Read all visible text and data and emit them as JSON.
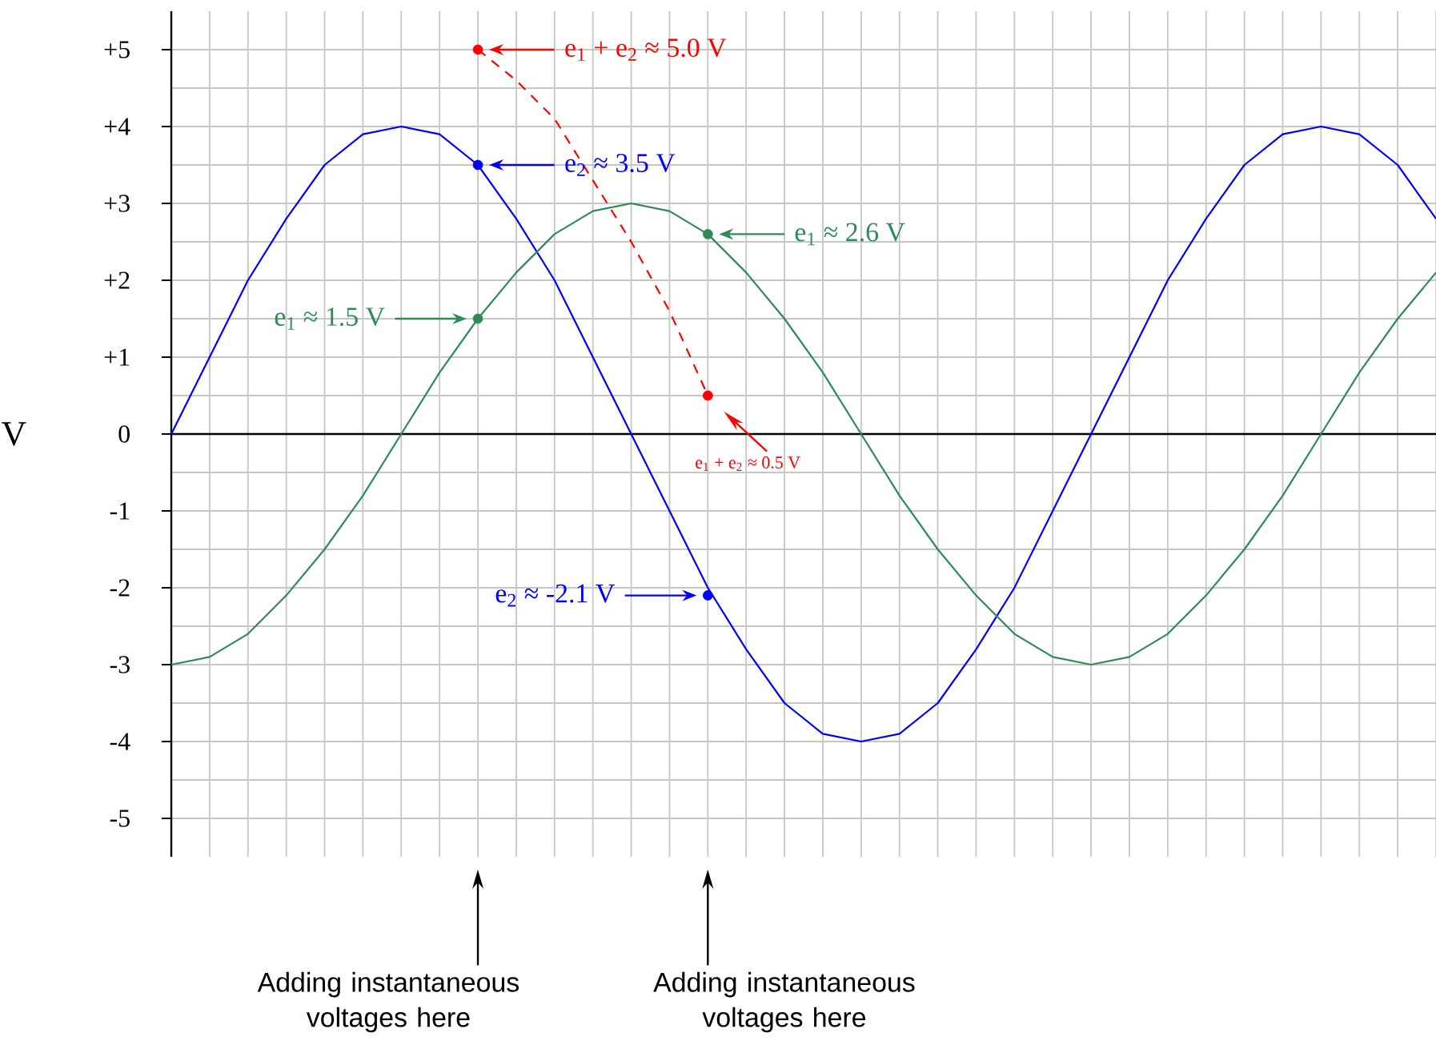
{
  "chart_data": {
    "type": "line",
    "ylabel": "V",
    "ylim": [
      -5.5,
      5.5
    ],
    "categories": [
      null,
      null,
      null,
      null,
      null,
      null,
      null,
      null,
      null,
      null,
      null,
      null,
      null,
      null,
      null,
      null,
      null,
      null,
      null,
      null,
      null,
      null,
      null,
      null,
      null,
      null,
      null,
      null,
      null,
      null,
      null,
      null,
      null,
      null
    ],
    "yticks": [
      {
        "value": 5,
        "label": "+5"
      },
      {
        "value": 4,
        "label": "+4"
      },
      {
        "value": 3,
        "label": "+3"
      },
      {
        "value": 2,
        "label": "+2"
      },
      {
        "value": 1,
        "label": "+1"
      },
      0,
      -1,
      -2,
      -3,
      -4,
      -5
    ],
    "tick_labels": "y",
    "grid": true,
    "series": [
      {
        "type": "line",
        "color": "#0000ff",
        "values": [
          0,
          1.0,
          2.0,
          2.8,
          3.5,
          3.9,
          4.0,
          3.9,
          3.5,
          2.8,
          2.0,
          1.0,
          0,
          -1.0,
          -2.0,
          -2.8,
          -3.5,
          -3.9,
          -4.0,
          -3.9,
          -3.5,
          -2.8,
          -2.0,
          -1.0,
          0,
          1.0,
          2.0,
          2.8,
          3.5,
          3.9,
          4.0,
          3.9,
          3.5,
          2.8
        ]
      },
      {
        "type": "line",
        "color": "#2e8b57",
        "values": [
          -3.0,
          -2.9,
          -2.6,
          -2.1,
          -1.5,
          -0.8,
          0,
          0.8,
          1.5,
          2.1,
          2.6,
          2.9,
          3.0,
          2.9,
          2.6,
          2.1,
          1.5,
          0.8,
          0,
          -0.8,
          -1.5,
          -2.1,
          -2.6,
          -2.9,
          -3.0,
          -2.9,
          -2.6,
          -2.1,
          -1.5,
          -0.8,
          0,
          0.8,
          1.5,
          2.1
        ]
      },
      {
        "type": "line",
        "color": "#ff0000",
        "line_style": "dashed",
        "values": [
          null,
          null,
          null,
          null,
          null,
          null,
          null,
          null,
          5.0,
          4.6,
          4.1,
          3.3,
          2.5,
          1.6,
          0.5,
          null,
          null,
          null,
          null,
          null,
          null,
          null,
          null,
          null,
          null,
          null,
          null,
          null,
          null,
          null,
          null,
          null,
          null,
          null
        ]
      },
      {
        "type": "scatter",
        "color": "#0000ff",
        "marker": "circle",
        "values": [
          null,
          null,
          null,
          null,
          null,
          null,
          null,
          null,
          3.5,
          null,
          null,
          null,
          null,
          null,
          -2.1,
          null,
          null,
          null,
          null,
          null,
          null,
          null,
          null,
          null,
          null,
          null,
          null,
          null,
          null,
          null,
          null,
          null,
          null,
          null
        ]
      },
      {
        "type": "scatter",
        "color": "#2e8b57",
        "marker": "circle",
        "values": [
          null,
          null,
          null,
          null,
          null,
          null,
          null,
          null,
          1.5,
          null,
          null,
          null,
          null,
          null,
          2.6,
          null,
          null,
          null,
          null,
          null,
          null,
          null,
          null,
          null,
          null,
          null,
          null,
          null,
          null,
          null,
          null,
          null,
          null,
          null
        ]
      },
      {
        "type": "scatter",
        "color": "#ff0000",
        "marker": "circle",
        "values": [
          null,
          null,
          null,
          null,
          null,
          null,
          null,
          null,
          5.0,
          null,
          null,
          null,
          null,
          null,
          0.5,
          null,
          null,
          null,
          null,
          null,
          null,
          null,
          null,
          null,
          null,
          null,
          null,
          null,
          null,
          null,
          null,
          null,
          null,
          null
        ]
      }
    ],
    "annotations": [
      "e$_{2}$ ≈ 3.5 V",
      "e$_{2}$ ≈ -2.1 V",
      "e$_{1}$ ≈ 1.5 V",
      "e$_{1}$ ≈ 2.6 V",
      "e$_{1}$ + e$_{2}$ ≈ 5.0 V",
      "e$_{1}$ + e$_{2}$ ≈ 0.5 V",
      "Adding instantaneous voltages here",
      "Adding instantaneous voltages here"
    ]
  }
}
